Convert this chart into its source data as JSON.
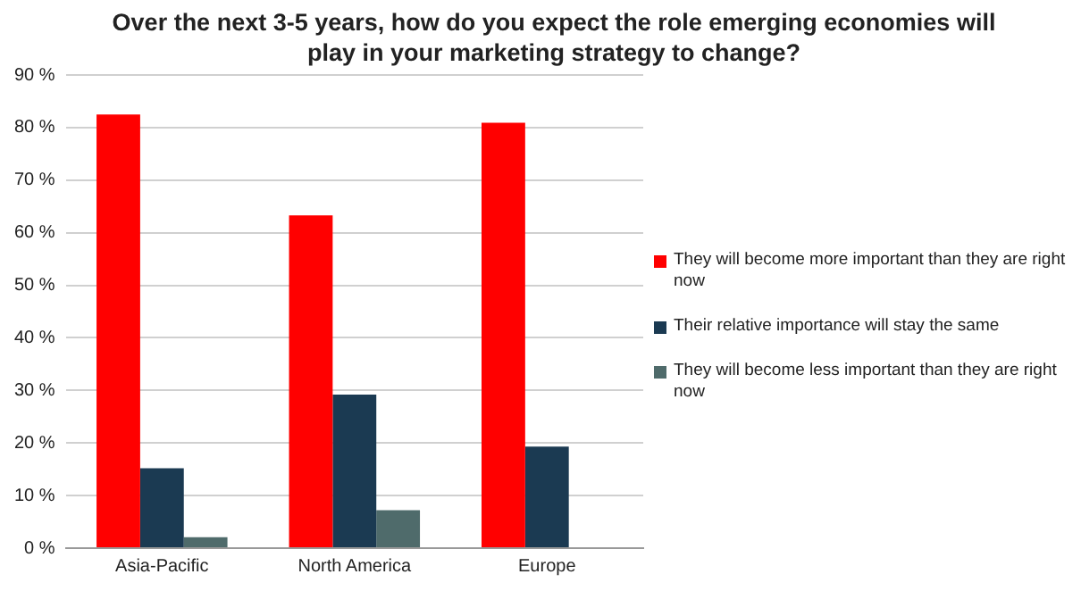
{
  "chart_data": {
    "type": "bar",
    "title": "Over the next 3-5 years, how do you expect the role emerging economies will play in your marketing strategy to change?",
    "categories": [
      "Asia-Pacific",
      "North America",
      "Europe"
    ],
    "series": [
      {
        "name": "They will become more important than they are right now",
        "color": "#ff0000",
        "values": [
          82.5,
          63.3,
          80.9
        ]
      },
      {
        "name": "Their relative importance will stay the same",
        "color": "#1b3a52",
        "values": [
          15.2,
          29.2,
          19.3
        ]
      },
      {
        "name": "They will become less important than they are right now",
        "color": "#4f6b6b",
        "values": [
          2.1,
          7.2,
          null
        ]
      }
    ],
    "ylim": [
      0,
      90
    ],
    "yticks": [
      {
        "value": 0,
        "label": "0 %"
      },
      {
        "value": 10,
        "label": "10 %"
      },
      {
        "value": 20,
        "label": "20 %"
      },
      {
        "value": 30,
        "label": "30 %"
      },
      {
        "value": 40,
        "label": "40 %"
      },
      {
        "value": 50,
        "label": "50 %"
      },
      {
        "value": 60,
        "label": "60 %"
      },
      {
        "value": 70,
        "label": "70 %"
      },
      {
        "value": 80,
        "label": "80 %"
      },
      {
        "value": 90,
        "label": "90 %"
      }
    ],
    "grid": "y",
    "legend": "right"
  }
}
